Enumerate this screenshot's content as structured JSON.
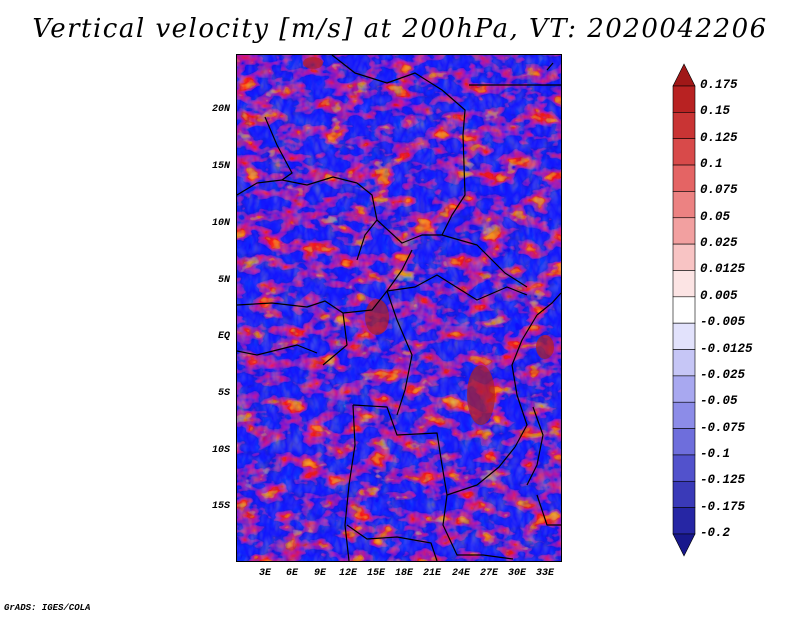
{
  "title": "Vertical velocity [m/s] at 200hPa, VT: 2020042206",
  "footer": "GrADS: IGES/COLA",
  "map": {
    "variable": "Vertical velocity",
    "units": "m/s",
    "level": "200hPa",
    "valid_time": "2020042206",
    "lat_labels": [
      "20N",
      "15N",
      "10N",
      "5N",
      "EQ",
      "5S",
      "10S",
      "15S"
    ],
    "lon_labels": [
      "3E",
      "6E",
      "9E",
      "12E",
      "15E",
      "18E",
      "21E",
      "24E",
      "27E",
      "30E",
      "33E"
    ]
  },
  "colorbar": {
    "levels": [
      "0.175",
      "0.15",
      "0.125",
      "0.1",
      "0.075",
      "0.05",
      "0.025",
      "0.0125",
      "0.005",
      "-0.005",
      "-0.0125",
      "-0.025",
      "-0.05",
      "-0.075",
      "-0.1",
      "-0.125",
      "-0.175",
      "-0.2"
    ],
    "colors": [
      "#a01818",
      "#b82222",
      "#c93434",
      "#d84a4a",
      "#e46464",
      "#ec8282",
      "#f2a0a0",
      "#f8c4c4",
      "#fce4e4",
      "#ffffff",
      "#e2e2fc",
      "#c6c6f6",
      "#a8a8f0",
      "#8c8ce8",
      "#6e6edc",
      "#5252cc",
      "#3a3ab8",
      "#2626a4",
      "#18188c"
    ]
  }
}
